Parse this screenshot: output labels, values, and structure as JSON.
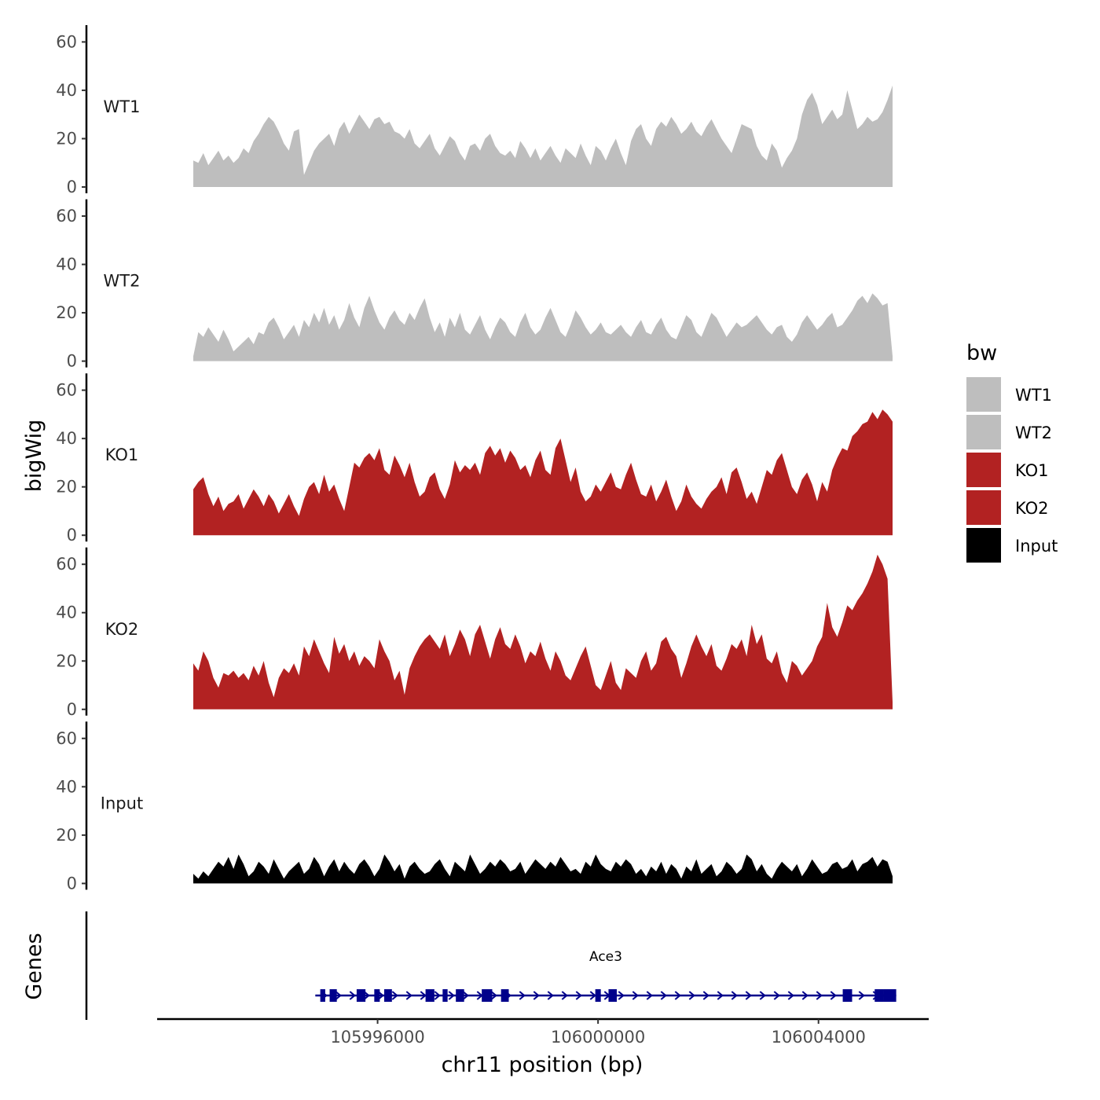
{
  "chart_data": {
    "type": "area",
    "title": "",
    "ylabel": "bigWig",
    "xlabel": "chr11 position (bp)",
    "x_range": [
      105992950,
      106005410
    ],
    "xlim": [
      105992000,
      106006000
    ],
    "ylim": [
      0,
      65
    ],
    "y_ticks": [
      0,
      20,
      40,
      60
    ],
    "x_ticks": [
      105996000,
      106000000,
      106004000
    ],
    "x_tick_labels": [
      "105996000",
      "106000000",
      "106004000"
    ],
    "y_tick_labels": [
      "0",
      "20",
      "40",
      "60"
    ],
    "legend": {
      "title": "bw",
      "position": "right",
      "entries": [
        {
          "label": "WT1",
          "color": "#bebebe"
        },
        {
          "label": "WT2",
          "color": "#bebebe"
        },
        {
          "label": "KO1",
          "color": "#b22222"
        },
        {
          "label": "KO2",
          "color": "#b22222"
        },
        {
          "label": "Input",
          "color": "#000000"
        }
      ]
    },
    "series": [
      {
        "name": "WT1",
        "color": "#bebebe",
        "values": [
          11,
          10,
          14,
          9,
          12,
          15,
          11,
          13,
          10,
          12,
          16,
          14,
          19,
          22,
          26,
          29,
          27,
          23,
          18,
          15,
          23,
          24,
          5,
          10,
          15,
          18,
          20,
          22,
          17,
          24,
          27,
          22,
          26,
          30,
          27,
          24,
          28,
          29,
          26,
          27,
          23,
          22,
          20,
          24,
          18,
          16,
          19,
          22,
          16,
          13,
          17,
          21,
          19,
          14,
          11,
          17,
          18,
          15,
          20,
          22,
          17,
          14,
          13,
          15,
          12,
          19,
          16,
          12,
          16,
          11,
          14,
          17,
          13,
          10,
          16,
          14,
          12,
          18,
          13,
          9,
          17,
          15,
          11,
          16,
          20,
          14,
          9,
          19,
          24,
          26,
          20,
          17,
          24,
          27,
          25,
          29,
          26,
          22,
          24,
          27,
          23,
          21,
          25,
          28,
          24,
          20,
          17,
          14,
          20,
          26,
          25,
          24,
          17,
          13,
          11,
          18,
          15,
          8,
          12,
          15,
          20,
          30,
          36,
          39,
          34,
          26,
          29,
          32,
          28,
          30,
          40,
          32,
          24,
          26,
          29,
          27,
          28,
          31,
          36,
          42
        ]
      },
      {
        "name": "WT2",
        "color": "#bebebe",
        "values": [
          2,
          12,
          10,
          14,
          11,
          8,
          13,
          9,
          4,
          6,
          8,
          10,
          7,
          12,
          11,
          16,
          18,
          14,
          9,
          12,
          15,
          10,
          17,
          14,
          20,
          16,
          22,
          15,
          19,
          13,
          17,
          24,
          18,
          14,
          22,
          27,
          21,
          16,
          13,
          18,
          21,
          17,
          15,
          20,
          17,
          22,
          26,
          18,
          12,
          16,
          10,
          18,
          14,
          20,
          13,
          11,
          15,
          19,
          13,
          9,
          14,
          18,
          16,
          12,
          10,
          16,
          20,
          14,
          11,
          13,
          18,
          22,
          17,
          12,
          10,
          15,
          21,
          18,
          14,
          11,
          13,
          16,
          12,
          11,
          13,
          15,
          12,
          10,
          14,
          17,
          12,
          11,
          15,
          18,
          13,
          10,
          9,
          14,
          19,
          17,
          12,
          10,
          15,
          20,
          18,
          14,
          10,
          13,
          16,
          14,
          15,
          17,
          19,
          16,
          13,
          11,
          14,
          15,
          10,
          8,
          11,
          16,
          19,
          16,
          13,
          15,
          18,
          20,
          14,
          15,
          18,
          21,
          25,
          27,
          24,
          28,
          26,
          23,
          24,
          2
        ]
      },
      {
        "name": "KO1",
        "color": "#b22222",
        "values": [
          19,
          22,
          24,
          17,
          12,
          16,
          10,
          13,
          14,
          17,
          11,
          15,
          19,
          16,
          12,
          17,
          14,
          9,
          13,
          17,
          12,
          8,
          15,
          20,
          22,
          17,
          25,
          18,
          21,
          15,
          10,
          20,
          30,
          28,
          32,
          34,
          31,
          36,
          27,
          25,
          33,
          29,
          24,
          30,
          22,
          16,
          18,
          24,
          26,
          19,
          15,
          21,
          31,
          26,
          29,
          27,
          30,
          25,
          34,
          37,
          33,
          36,
          30,
          35,
          32,
          27,
          29,
          24,
          31,
          35,
          27,
          25,
          36,
          40,
          31,
          22,
          28,
          18,
          14,
          16,
          21,
          18,
          22,
          26,
          20,
          19,
          25,
          30,
          23,
          17,
          16,
          21,
          14,
          18,
          23,
          16,
          10,
          14,
          21,
          16,
          13,
          11,
          15,
          18,
          20,
          24,
          17,
          26,
          28,
          22,
          15,
          18,
          13,
          20,
          27,
          25,
          31,
          34,
          27,
          20,
          17,
          23,
          26,
          21,
          14,
          22,
          18,
          27,
          32,
          36,
          35,
          41,
          43,
          46,
          47,
          51,
          48,
          52,
          50,
          47
        ]
      },
      {
        "name": "KO2",
        "color": "#b22222",
        "values": [
          19,
          16,
          24,
          20,
          13,
          9,
          15,
          14,
          16,
          13,
          15,
          12,
          18,
          14,
          20,
          11,
          5,
          13,
          17,
          15,
          19,
          14,
          26,
          22,
          29,
          24,
          19,
          15,
          30,
          23,
          27,
          20,
          24,
          18,
          22,
          20,
          17,
          29,
          24,
          20,
          12,
          16,
          6,
          17,
          22,
          26,
          29,
          31,
          28,
          25,
          31,
          22,
          27,
          33,
          29,
          22,
          31,
          35,
          28,
          21,
          29,
          34,
          27,
          25,
          31,
          26,
          19,
          24,
          22,
          28,
          21,
          16,
          24,
          20,
          14,
          12,
          17,
          22,
          26,
          18,
          10,
          8,
          14,
          20,
          11,
          8,
          17,
          15,
          13,
          20,
          24,
          16,
          19,
          28,
          30,
          25,
          22,
          13,
          19,
          26,
          31,
          26,
          22,
          27,
          18,
          16,
          21,
          27,
          25,
          29,
          22,
          35,
          27,
          31,
          21,
          19,
          24,
          15,
          11,
          20,
          18,
          14,
          17,
          20,
          26,
          30,
          44,
          34,
          30,
          36,
          43,
          41,
          45,
          48,
          52,
          57,
          64,
          60,
          54,
          3
        ]
      },
      {
        "name": "Input",
        "color": "#000000",
        "values": [
          4,
          2,
          5,
          3,
          6,
          9,
          7,
          11,
          6,
          12,
          8,
          3,
          5,
          9,
          7,
          4,
          10,
          6,
          2,
          5,
          7,
          9,
          4,
          6,
          11,
          8,
          3,
          7,
          10,
          5,
          9,
          6,
          4,
          8,
          10,
          7,
          3,
          6,
          12,
          9,
          5,
          8,
          2,
          7,
          9,
          6,
          4,
          5,
          8,
          10,
          6,
          3,
          9,
          7,
          5,
          12,
          8,
          4,
          6,
          9,
          7,
          10,
          8,
          5,
          6,
          9,
          4,
          7,
          10,
          8,
          6,
          9,
          7,
          11,
          8,
          5,
          6,
          4,
          9,
          7,
          12,
          8,
          6,
          5,
          9,
          7,
          10,
          8,
          4,
          6,
          3,
          7,
          5,
          9,
          4,
          8,
          6,
          2,
          7,
          5,
          10,
          4,
          6,
          8,
          3,
          5,
          9,
          7,
          4,
          6,
          12,
          10,
          5,
          8,
          4,
          2,
          6,
          9,
          7,
          5,
          8,
          3,
          6,
          10,
          7,
          4,
          5,
          8,
          9,
          6,
          7,
          10,
          5,
          8,
          9,
          11,
          7,
          10,
          9,
          3
        ]
      }
    ],
    "genes": [
      {
        "name": "Ace3",
        "strand": "+",
        "start": 105994870,
        "end": 106005410,
        "color": "#00008b",
        "exons": [
          [
            105994960,
            105995050
          ],
          [
            105995130,
            105995260
          ],
          [
            105995620,
            105995780
          ],
          [
            105995940,
            105996040
          ],
          [
            105996120,
            105996260
          ],
          [
            105996870,
            105997030
          ],
          [
            105997180,
            105997270
          ],
          [
            105997420,
            105997570
          ],
          [
            105997890,
            105998080
          ],
          [
            105998240,
            105998380
          ],
          [
            105999950,
            106000050
          ],
          [
            106000190,
            106000340
          ],
          [
            106004440,
            106004610
          ],
          [
            106005020,
            106005180
          ],
          [
            106005180,
            106005410
          ]
        ]
      }
    ],
    "genes_track_label": "Genes"
  }
}
